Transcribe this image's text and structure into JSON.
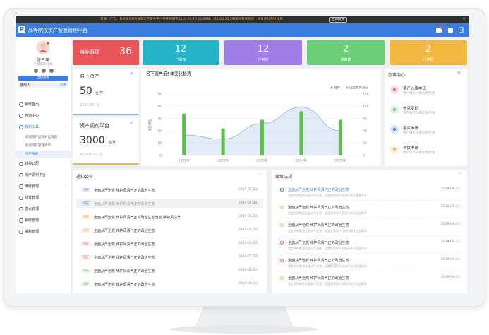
{
  "banner": {
    "text": "温馨：广告。系统服务ICP备案资产服务平台已经到期于2019-08-19 23:00截止(12:00-23:59)期间暂停服务，请各单位及时续费",
    "button": "立即续费"
  },
  "header": {
    "logo": "P",
    "title": "高等院校资产智慧管理平台"
  },
  "user": {
    "name": "张三丰",
    "org": "大其美校分校",
    "button": "当前角色",
    "role": "使用人",
    "switch": "切换"
  },
  "menu": [
    {
      "label": "系统首页"
    },
    {
      "label": "查询中心"
    },
    {
      "label": "我的工具",
      "children": [
        "低值资产类目分类管理",
        "低值资产管理清单",
        "资产清单"
      ]
    },
    {
      "label": "转移公配"
    },
    {
      "label": "资产调剂平台"
    },
    {
      "label": "维修管理"
    },
    {
      "label": "处置管理"
    },
    {
      "label": "盘点管理"
    },
    {
      "label": "系统管理"
    },
    {
      "label": "采购管理"
    }
  ],
  "stats": [
    {
      "label": "待办事项",
      "value": "36"
    },
    {
      "label": "已通知",
      "value": "12"
    },
    {
      "label": "已完结",
      "value": "12"
    },
    {
      "label": "待审核",
      "value": "2"
    },
    {
      "label": "已审核",
      "value": "2"
    }
  ],
  "assets": [
    {
      "title": "名下资产",
      "value": "50",
      "unit": "台/件",
      "amount": "2,000.00 元"
    },
    {
      "title": "资产调剂平台",
      "value": "3000",
      "unit": "台/件",
      "amount": "40,000.00 元"
    }
  ],
  "chart_data": {
    "type": "bar",
    "title": "名下资产近5年变化趋势",
    "y_label": "金额单位",
    "categories": [
      "2021年",
      "2022年",
      "2023年",
      "2024年",
      "2025年"
    ],
    "series": [
      {
        "name": "资产",
        "type": "bar",
        "color": "#5cbf4c",
        "values": [
          3400,
          2200,
          2900,
          3600,
          2900
        ]
      },
      {
        "name": "固定资产总价",
        "type": "area",
        "color": "#8fb0e6",
        "axis": "y2",
        "values": [
          50,
          40,
          78,
          118,
          60
        ]
      }
    ],
    "ylim": [
      0,
      5000
    ],
    "yticks": [
      0,
      {
        "value": 1000,
        "label": "1K"
      },
      {
        "value": 2000,
        "label": "2K"
      },
      {
        "value": 3000,
        "label": "3K"
      },
      {
        "value": 4000,
        "label": "4K"
      },
      {
        "value": 5000,
        "label": "5K"
      }
    ],
    "y2lim": [
      0,
      150
    ],
    "y2ticks": [
      0,
      30,
      60,
      90,
      120,
      150
    ],
    "grid": true
  },
  "service": {
    "title": "办事中心",
    "items": [
      {
        "title": "资产入库申请",
        "desc": "用户填写入库信息申请"
      },
      {
        "title": "信息变动",
        "desc": "用户填写入库信息申请"
      },
      {
        "title": "退库申请",
        "desc": "用户填写入库信息申请"
      },
      {
        "title": "调拨申请",
        "desc": "用户填写入库信息申请"
      }
    ]
  },
  "notices": {
    "title": "通知公告",
    "items": [
      {
        "tag": "7天",
        "text": "全面从严治党 维护风清气正的政治生态",
        "date": "2019-07-23"
      },
      {
        "tag": "7天",
        "text": "全面从严治党 维护风清气正的政治生态",
        "date": "2019-07-30"
      },
      {
        "tag": "6天",
        "text": "全面从严治党 维护风清气正的政治生态治党 维护风清气",
        "date": "2019-06-23"
      },
      {
        "tag": "6天",
        "text": "全面从严治党 维护风清气正的政治生态",
        "date": "2019-06-23"
      },
      {
        "tag": "5天",
        "text": "全面从严治党 维护风清气正的政治生态",
        "date": "2019-05-23"
      },
      {
        "tag": "5天",
        "text": "全面从严治党 维护风清气正的政治生态",
        "date": "2019-05-23"
      },
      {
        "tag": "4天",
        "text": "全面从严治党 维护风清气正的政治生态",
        "date": "2019-04-23"
      },
      {
        "tag": "4天",
        "text": "全面从严治党 维护风清气正的政治生态",
        "date": "2019-04-23"
      }
    ]
  },
  "policies": {
    "title": "政策法规",
    "items": [
      {
        "title": "全面从严治党 维护风清气正的政治生态",
        "desc": "坚定不移推进全面从严治党，这是党领导人民进行伟大社会革命",
        "date": "2019-04-23"
      },
      {
        "title": "全面从严治党 维护风清气正的政治生态",
        "desc": "坚定不移推进全面从严治党，这是党领导人民进行伟大社会革命",
        "date": "2019-04-23"
      },
      {
        "title": "全面从严治党 维护风清气正的政治生态",
        "desc": "坚定不移推进全面从严治党，这是党领导人民进行伟大社会革命",
        "date": "2019-04-23"
      },
      {
        "title": "全面从严治党 维护风清气正的政治生态",
        "desc": "坚定不移推进全面从严治党，这是党领导人民进行伟大社会革命",
        "date": "2019-04-23"
      },
      {
        "title": "全面从严治党 维护风清气正的政治生态",
        "desc": "坚定不移推进全面从严治党，这是党领导人民进行伟大社会革命",
        "date": "2019-04-23"
      },
      {
        "title": "全面从严治党 维护风清气正的政治生态",
        "desc": "坚定不移推进全面从严治党，这是党领导人民进行伟大社会革命",
        "date": "2019-04-23"
      }
    ]
  }
}
